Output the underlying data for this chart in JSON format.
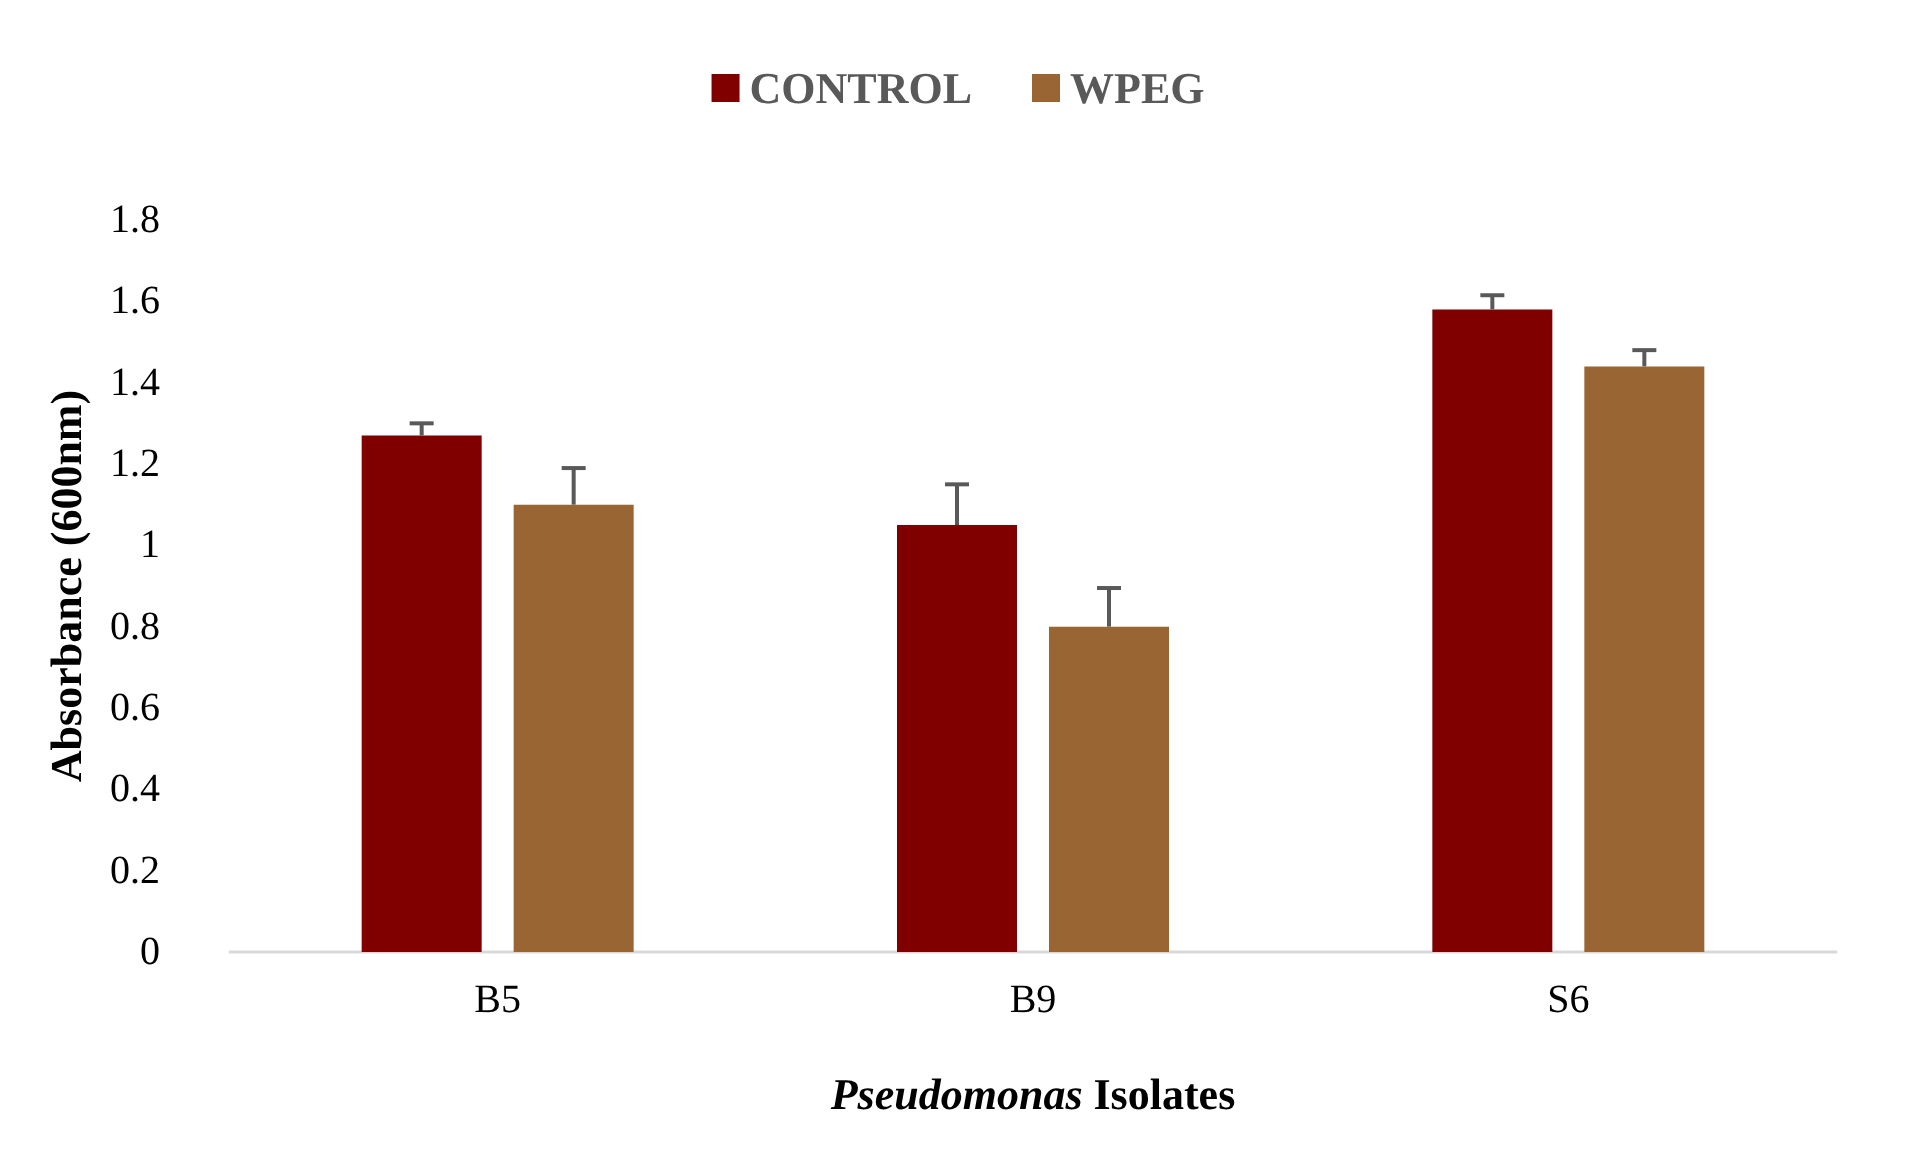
{
  "chart_data": {
    "type": "bar",
    "xlabel": "Pseudomonas Isolates",
    "ylabel": "Absorbance (600nm)",
    "categories": [
      "B5",
      "B9",
      "S6"
    ],
    "series": [
      {
        "name": "CONTROL",
        "color": "#800000",
        "values": [
          1.27,
          1.05,
          1.58
        ],
        "errors": [
          [
            1.27,
            1.3
          ],
          [
            1.05,
            1.15
          ],
          [
            1.58,
            1.615
          ]
        ]
      },
      {
        "name": "WPEG",
        "color": "#996633",
        "values": [
          1.1,
          0.8,
          1.44
        ],
        "errors": [
          [
            1.1,
            1.19
          ],
          [
            0.8,
            0.895
          ],
          [
            1.44,
            1.48
          ]
        ]
      }
    ],
    "ylim": [
      0,
      1.8
    ],
    "yticks": [
      0,
      0.2,
      0.4,
      0.6,
      0.8,
      1,
      1.2,
      1.4,
      1.6,
      1.8
    ],
    "grid": false,
    "legend": "top"
  }
}
